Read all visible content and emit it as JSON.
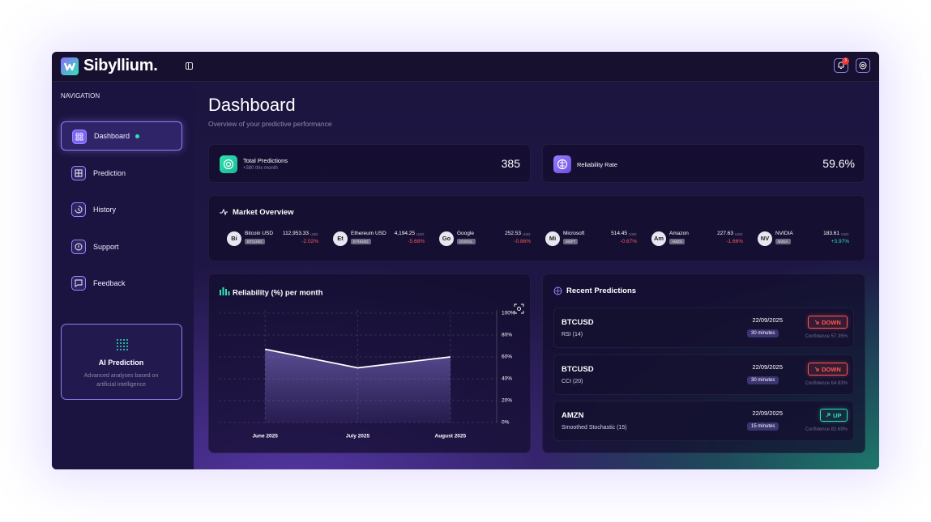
{
  "header": {
    "brand": "Sibyllium.",
    "notification_count": "3"
  },
  "navigation": {
    "title": "NAVIGATION",
    "items": [
      "Dashboard",
      "Prediction",
      "History",
      "Support",
      "Feedback"
    ]
  },
  "ai_card": {
    "title": "AI Prediction",
    "text": "Advanced analyses based on artificial intelligence"
  },
  "page": {
    "title": "Dashboard",
    "subtitle": "Overview of your predictive performance"
  },
  "stats": [
    {
      "label": "Total Predictions",
      "detail": "+380 this month",
      "value": "385"
    },
    {
      "label": "Reliability Rate",
      "value": "59.6%"
    }
  ],
  "market": {
    "title": "Market Overview",
    "items": [
      {
        "abbr": "Bi",
        "name": "Bitcoin USD",
        "ticker": "BTCUSD",
        "price": "112,953.33",
        "currency": "USD",
        "change": "-2.02%"
      },
      {
        "abbr": "Et",
        "name": "Ethereum USD",
        "ticker": "ETHUSD",
        "price": "4,194.25",
        "currency": "USD",
        "change": "-5.68%"
      },
      {
        "abbr": "Go",
        "name": "Google",
        "ticker": "GOOGL",
        "price": "252.53",
        "currency": "USD",
        "change": "-0.86%"
      },
      {
        "abbr": "Mi",
        "name": "Microsoft",
        "ticker": "MSFT",
        "price": "514.45",
        "currency": "USD",
        "change": "-0.67%"
      },
      {
        "abbr": "Am",
        "name": "Amazon",
        "ticker": "AMZN",
        "price": "227.63",
        "currency": "USD",
        "change": "-1.66%"
      },
      {
        "abbr": "NV",
        "name": "NVIDIA",
        "ticker": "NVDA",
        "price": "183.61",
        "currency": "USD",
        "change": "+3.97%"
      }
    ]
  },
  "chart_data": {
    "type": "line",
    "title": "Reliability (%) per month",
    "categories": [
      "June 2025",
      "July 2025",
      "August 2025"
    ],
    "values": [
      67,
      50,
      60
    ],
    "color": "#ffffff",
    "ylim": [
      0,
      100
    ],
    "yticks": [
      {
        "value": 0,
        "label": "0%"
      },
      {
        "value": 20,
        "label": "20%"
      },
      {
        "value": 40,
        "label": "40%"
      },
      {
        "value": 60,
        "label": "60%"
      },
      {
        "value": 80,
        "label": "80%"
      },
      {
        "value": 100,
        "label": "100%"
      }
    ],
    "grid": true
  },
  "predictions": {
    "title": "Recent Predictions",
    "items": [
      {
        "symbol": "BTCUSD",
        "indicator": "RSI (14)",
        "date": "22/09/2025",
        "horizon": "30 minutes",
        "direction": "DOWN",
        "confidence": "Confidence 57.35%"
      },
      {
        "symbol": "BTCUSD",
        "indicator": "CCI (20)",
        "date": "22/09/2025",
        "horizon": "30 minutes",
        "direction": "DOWN",
        "confidence": "Confidence 64.83%"
      },
      {
        "symbol": "AMZN",
        "indicator": "Smoothed Stochastic (15)",
        "date": "22/09/2025",
        "horizon": "15 minutes",
        "direction": "UP",
        "confidence": "Confidence 82.69%"
      }
    ]
  }
}
